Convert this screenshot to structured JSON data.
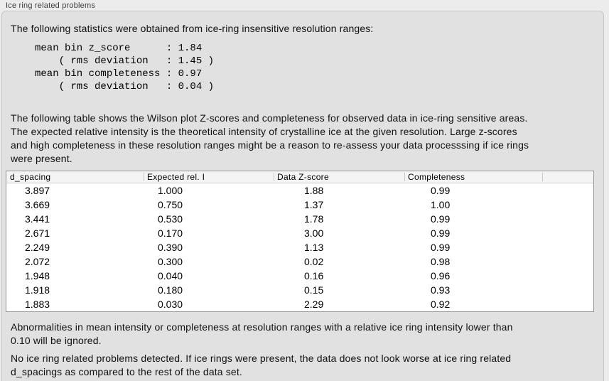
{
  "section": {
    "title": "Ice ring related problems"
  },
  "intro_text": "The following statistics were obtained from ice-ring insensitive resolution ranges:",
  "stats_block": "mean bin z_score      : 1.84\n    ( rms deviation   : 1.45 )\nmean bin completeness : 0.97\n    ( rms deviation   : 0.04 )",
  "stats": {
    "mean_bin_z_score": "1.84",
    "z_score_rms_deviation": "1.45",
    "mean_bin_completeness": "0.97",
    "completeness_rms_deviation": "0.04"
  },
  "table_description": "The following table shows the Wilson plot Z-scores and completeness for observed data in ice-ring sensitive areas.\nThe expected relative intensity is the theoretical intensity of crystalline ice at the given resolution. Large z-scores\nand high completeness in these resolution ranges might be a reason to re-assess your data processsing if ice rings\nwere present.",
  "table": {
    "columns": [
      "d_spacing",
      "Expected rel. I",
      "Data Z-score",
      "Completeness"
    ],
    "rows": [
      [
        "3.897",
        "1.000",
        "1.88",
        "0.99"
      ],
      [
        "3.669",
        "0.750",
        "1.37",
        "1.00"
      ],
      [
        "3.441",
        "0.530",
        "1.78",
        "0.99"
      ],
      [
        "2.671",
        "0.170",
        "3.00",
        "0.99"
      ],
      [
        "2.249",
        "0.390",
        "1.13",
        "0.99"
      ],
      [
        "2.072",
        "0.300",
        "0.02",
        "0.98"
      ],
      [
        "1.948",
        "0.040",
        "0.16",
        "0.96"
      ],
      [
        "1.918",
        "0.180",
        "0.15",
        "0.93"
      ],
      [
        "1.883",
        "0.030",
        "2.29",
        "0.92"
      ]
    ]
  },
  "notes": {
    "ignore_threshold": "Abnormalities in mean intensity or completeness at resolution ranges with a relative ice ring intensity lower than\n0.10 will be ignored.",
    "conclusion": "No ice ring related problems detected. If ice rings were present, the data does not look worse at ice ring related\nd_spacings as compared to the rest of the data set."
  },
  "colors": {
    "outer_background": "#ececec",
    "panel_background": "#e1e1e1",
    "panel_border": "#c5c5c5",
    "section_title_text": "#3c3c3c",
    "body_text": "#111111",
    "table_background": "#ffffff",
    "table_border": "#979797",
    "table_header_background": "#f4f4f4",
    "table_header_divider": "#c9c9c9"
  }
}
